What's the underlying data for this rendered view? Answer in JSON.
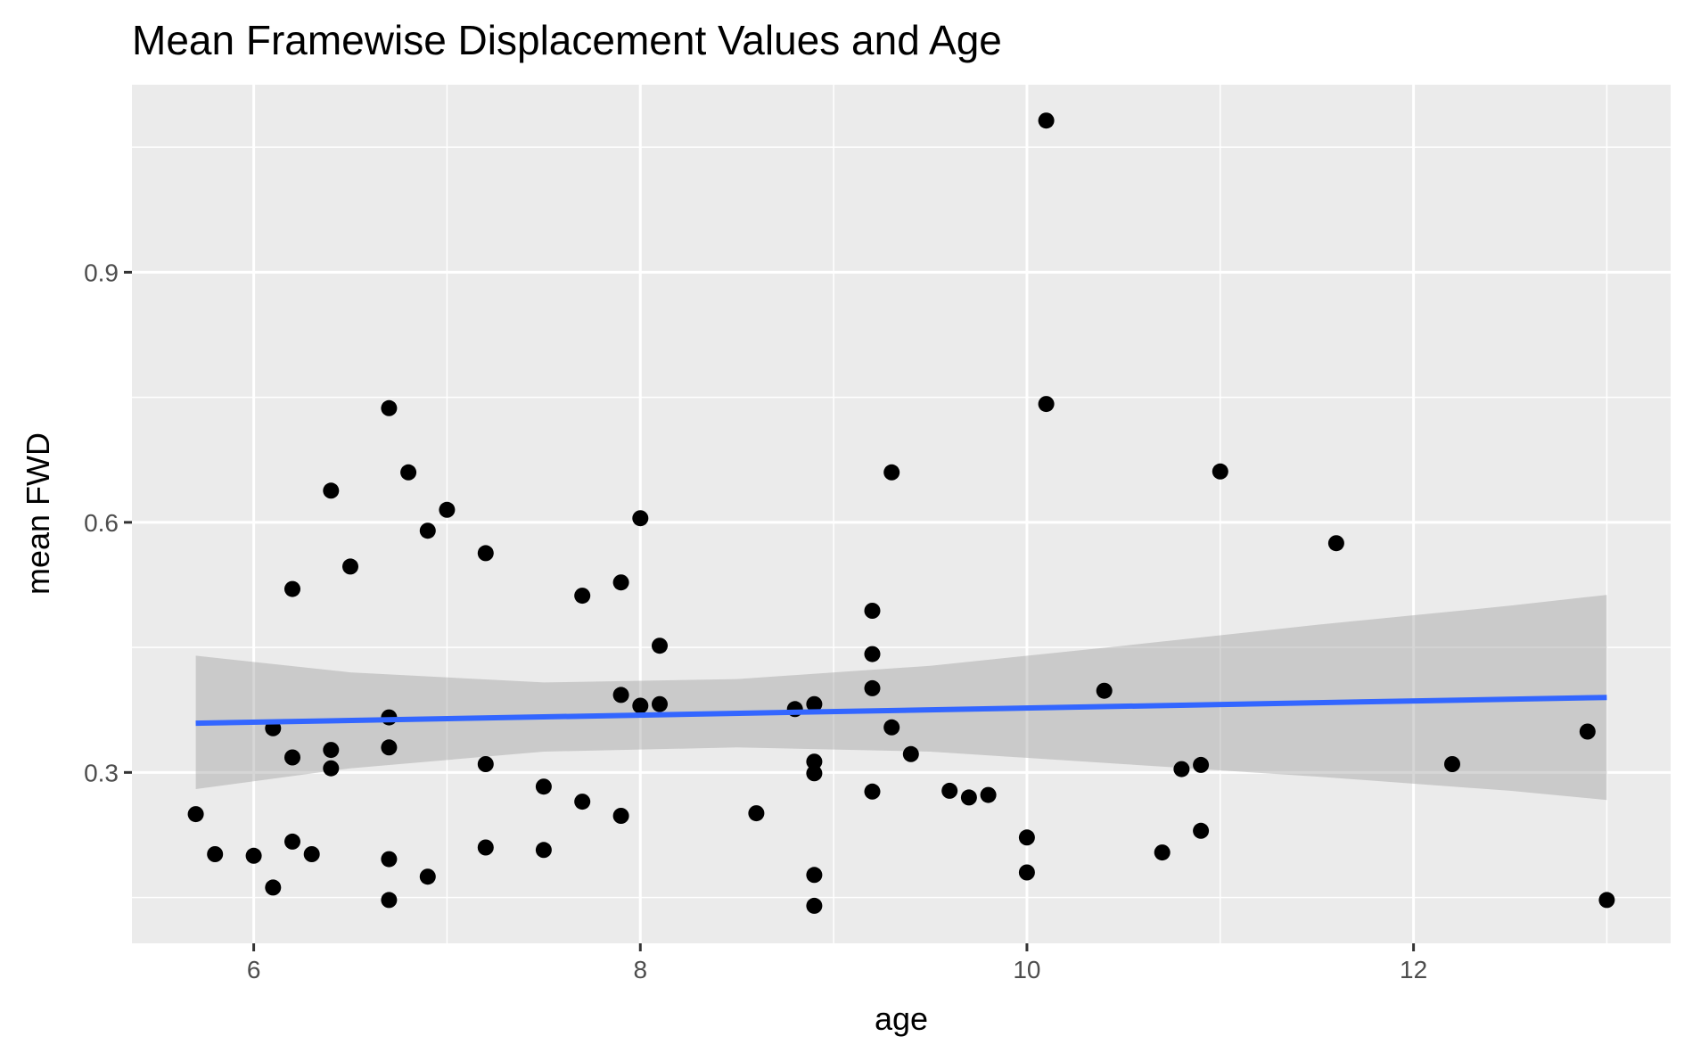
{
  "chart_data": {
    "type": "scatter",
    "title": "Mean Framewise Displacement Values and Age",
    "xlabel": "age",
    "ylabel": "mean FWD",
    "xlim": [
      5.37,
      13.33
    ],
    "ylim": [
      0.095,
      1.125
    ],
    "x_ticks": [
      6,
      8,
      10,
      12
    ],
    "x_tick_labels": [
      "6",
      "8",
      "10",
      "12"
    ],
    "y_ticks": [
      0.3,
      0.6,
      0.9
    ],
    "y_tick_labels": [
      "0.3",
      "0.6",
      "0.9"
    ],
    "x_minor": [
      7,
      9,
      11,
      13
    ],
    "y_minor": [
      0.15,
      0.45,
      0.75,
      1.05
    ],
    "grid": true,
    "legend": "none",
    "points": {
      "x": [
        5.7,
        5.8,
        6.0,
        6.1,
        6.1,
        6.2,
        6.2,
        6.2,
        6.3,
        6.4,
        6.4,
        6.4,
        6.5,
        6.7,
        6.7,
        6.7,
        6.7,
        6.7,
        6.8,
        6.9,
        6.9,
        7.0,
        7.2,
        7.2,
        7.2,
        7.5,
        7.5,
        7.7,
        7.7,
        7.9,
        7.9,
        7.9,
        8.0,
        8.0,
        8.1,
        8.1,
        8.6,
        8.8,
        8.9,
        8.9,
        8.9,
        8.9,
        8.9,
        9.2,
        9.2,
        9.2,
        9.2,
        9.3,
        9.3,
        9.4,
        9.6,
        9.7,
        9.8,
        10.0,
        10.0,
        10.1,
        10.1,
        10.4,
        10.7,
        10.8,
        10.9,
        10.9,
        11.0,
        11.6,
        12.2,
        12.9,
        13.0
      ],
      "y": [
        0.25,
        0.202,
        0.2,
        0.162,
        0.353,
        0.52,
        0.318,
        0.217,
        0.202,
        0.638,
        0.327,
        0.305,
        0.547,
        0.737,
        0.366,
        0.33,
        0.196,
        0.147,
        0.66,
        0.59,
        0.175,
        0.615,
        0.563,
        0.31,
        0.21,
        0.283,
        0.207,
        0.512,
        0.265,
        0.528,
        0.393,
        0.248,
        0.605,
        0.38,
        0.452,
        0.382,
        0.251,
        0.376,
        0.382,
        0.313,
        0.299,
        0.177,
        0.14,
        0.494,
        0.442,
        0.401,
        0.277,
        0.66,
        0.354,
        0.322,
        0.278,
        0.27,
        0.273,
        0.222,
        0.18,
        1.082,
        0.742,
        0.398,
        0.204,
        0.304,
        0.309,
        0.23,
        0.661,
        0.575,
        0.31,
        0.349,
        0.147
      ]
    },
    "fit_line": {
      "method": "linear",
      "x": [
        5.7,
        13.0
      ],
      "y": [
        0.359,
        0.39
      ],
      "color": "#3366ff"
    },
    "confidence_band": {
      "x": [
        5.7,
        6.5,
        7.5,
        8.5,
        9.5,
        10.5,
        11.5,
        12.5,
        13.0
      ],
      "lower": [
        0.28,
        0.305,
        0.325,
        0.33,
        0.325,
        0.31,
        0.295,
        0.278,
        0.267
      ],
      "upper": [
        0.44,
        0.42,
        0.408,
        0.412,
        0.428,
        0.452,
        0.477,
        0.5,
        0.513
      ],
      "color": "#999999"
    },
    "colors": {
      "panel": "#ebebeb",
      "grid": "#ffffff",
      "point": "#000000",
      "band": "#999999",
      "fit": "#3366ff"
    }
  }
}
